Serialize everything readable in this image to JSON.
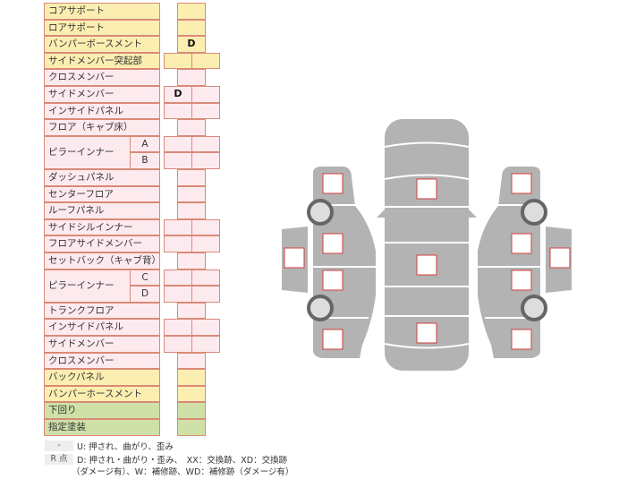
{
  "rows": [
    {
      "label": "コアサポート",
      "color": "y",
      "type": "single",
      "values": [
        ""
      ]
    },
    {
      "label": "ロアサポート",
      "color": "y",
      "type": "single",
      "values": [
        ""
      ]
    },
    {
      "label": "バンパーボースメント",
      "color": "y",
      "type": "single",
      "values": [
        "D"
      ]
    },
    {
      "label": "サイドメンバー突起部",
      "color": "y",
      "type": "double",
      "values": [
        "",
        ""
      ]
    },
    {
      "label": "クロスメンバー",
      "color": "p",
      "type": "single",
      "values": [
        ""
      ]
    },
    {
      "label": "サイドメンバー",
      "color": "p",
      "type": "double",
      "values": [
        "D",
        ""
      ]
    },
    {
      "label": "インサイドパネル",
      "color": "p",
      "type": "double",
      "values": [
        "",
        ""
      ]
    },
    {
      "label": "フロア（キャブ床）",
      "color": "p",
      "type": "single",
      "values": [
        ""
      ]
    },
    {
      "label": "ピラーインナー",
      "sub": "A",
      "color": "p",
      "type": "double",
      "values": [
        "",
        ""
      ],
      "span": true
    },
    {
      "label": "",
      "sub": "B",
      "color": "p",
      "type": "double",
      "values": [
        "",
        ""
      ]
    },
    {
      "label": "ダッシュパネル",
      "color": "p",
      "type": "single",
      "values": [
        ""
      ]
    },
    {
      "label": "センターフロア",
      "color": "p",
      "type": "single",
      "values": [
        ""
      ]
    },
    {
      "label": "ルーフパネル",
      "color": "p",
      "type": "single",
      "values": [
        ""
      ]
    },
    {
      "label": "サイドシルインナー",
      "color": "p",
      "type": "double",
      "values": [
        "",
        ""
      ]
    },
    {
      "label": "フロアサイドメンバー",
      "color": "p",
      "type": "double",
      "values": [
        "",
        ""
      ]
    },
    {
      "label": "セットバック（キャブ背）",
      "color": "p",
      "type": "single",
      "values": [
        ""
      ]
    },
    {
      "label": "ピラーインナー",
      "sub": "C",
      "color": "p",
      "type": "double",
      "values": [
        "",
        ""
      ],
      "span": true
    },
    {
      "label": "",
      "sub": "D",
      "color": "p",
      "type": "double",
      "values": [
        "",
        ""
      ]
    },
    {
      "label": "トランクフロア",
      "color": "p",
      "type": "single",
      "values": [
        ""
      ]
    },
    {
      "label": "インサイドパネル",
      "color": "p",
      "type": "double",
      "values": [
        "",
        ""
      ]
    },
    {
      "label": "サイドメンバー",
      "color": "p",
      "type": "double",
      "values": [
        "",
        ""
      ]
    },
    {
      "label": "クロスメンバー",
      "color": "p",
      "type": "single",
      "values": [
        ""
      ]
    },
    {
      "label": "バックパネル",
      "color": "y",
      "type": "single",
      "values": [
        ""
      ]
    },
    {
      "label": "バンパーホースメント",
      "color": "y",
      "type": "single",
      "values": [
        ""
      ]
    },
    {
      "label": "下回り",
      "color": "g",
      "type": "single",
      "values": [
        ""
      ]
    },
    {
      "label": "指定塗装",
      "color": "g",
      "type": "single",
      "values": [
        ""
      ]
    }
  ],
  "legend": {
    "key1": "-",
    "text1": "U: 押され、曲がり、歪み",
    "key2": "R 点",
    "text2": "D: 押され・曲がり・歪み、　XX：交換跡、XD：交換跡",
    "text3": "（ダメージ有）、W：補修跡、WD：補修跡（ダメージ有）"
  },
  "colors": {
    "yellow": "#fbeeb0",
    "pink": "#fdeaee",
    "green": "#cfe1a7",
    "border": "#d98a78",
    "car": "#b3b3b3",
    "mark": "#d33c3c"
  }
}
